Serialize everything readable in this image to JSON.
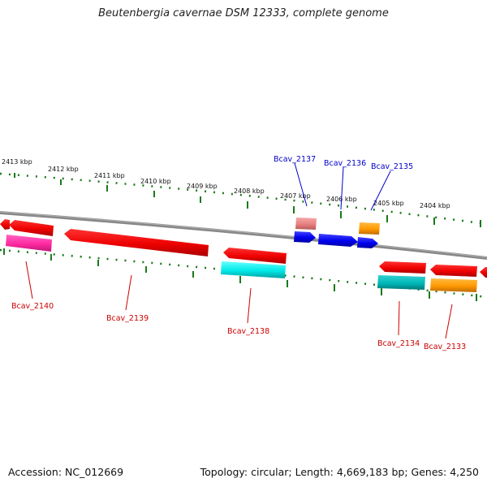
{
  "title": "Beutenbergia cavernae DSM 12333, complete genome",
  "footer": {
    "accession": "Accession: NC_012669",
    "topology": "Topology: circular; Length: 4,669,183 bp; Genes: 4,250"
  },
  "colors": {
    "backbone": "#808080",
    "tick": "#1a7a1a",
    "label_reverse": "#cc0000",
    "label_forward": "#0000cc",
    "gene_red": "#ee0000",
    "gene_magenta": "#ff2aa0",
    "gene_cyan": "#00e8e8",
    "gene_teal": "#00b8b8",
    "gene_orange": "#ff9900",
    "gene_blue": "#0000ee",
    "gene_pink": "#e88080"
  },
  "scale_labels": [
    "2413 kbp",
    "2412 kbp",
    "2411 kbp",
    "2410 kbp",
    "2409 kbp",
    "2408 kbp",
    "2407 kbp",
    "2406 kbp",
    "2405 kbp",
    "2404 kbp"
  ],
  "genes": [
    {
      "name": "Bcav_2140",
      "strand": "reverse",
      "color": "magenta"
    },
    {
      "name": "Bcav_2139",
      "strand": "reverse",
      "color": "red"
    },
    {
      "name": "Bcav_2138",
      "strand": "reverse",
      "color": "cyan"
    },
    {
      "name": "Bcav_2137",
      "strand": "forward",
      "color": "pink"
    },
    {
      "name": "Bcav_2136",
      "strand": "forward",
      "color": "blue"
    },
    {
      "name": "Bcav_2135",
      "strand": "forward",
      "color": "orange"
    },
    {
      "name": "Bcav_2134",
      "strand": "reverse",
      "color": "teal"
    },
    {
      "name": "Bcav_2133",
      "strand": "reverse",
      "color": "orange"
    }
  ]
}
